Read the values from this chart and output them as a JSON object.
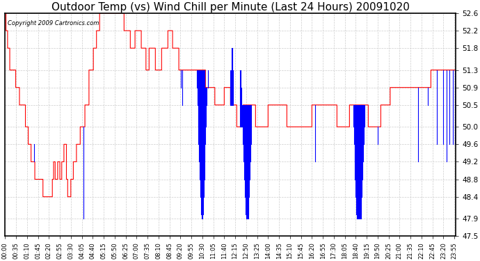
{
  "title": "Outdoor Temp (vs) Wind Chill per Minute (Last 24 Hours) 20091020",
  "copyright": "Copyright 2009 Cartronics.com",
  "yticks": [
    47.5,
    47.9,
    48.4,
    48.8,
    49.2,
    49.6,
    50.0,
    50.5,
    50.9,
    51.3,
    51.8,
    52.2,
    52.6
  ],
  "ylim": [
    47.5,
    52.6
  ],
  "bg_color": "#ffffff",
  "grid_color": "#cccccc",
  "red_color": "#ff0000",
  "blue_color": "#0000ff",
  "title_fontsize": 11,
  "copyright_fontsize": 6,
  "xtick_interval": 35,
  "total_minutes": 1440
}
